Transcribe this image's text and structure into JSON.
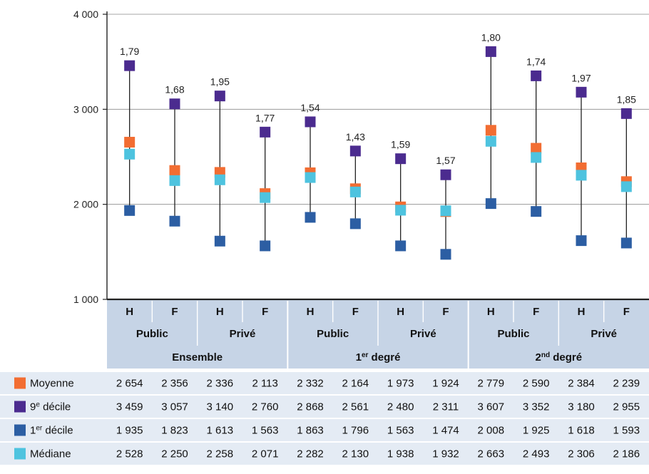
{
  "chart_data": {
    "type": "range",
    "ylim": [
      1000,
      4000
    ],
    "yticks": [
      "1 000",
      "2 000",
      "3 000",
      "4 000"
    ],
    "ytick_values": [
      1000,
      2000,
      3000,
      4000
    ],
    "categories": [
      "H",
      "F",
      "H",
      "F",
      "H",
      "F",
      "H",
      "F",
      "H",
      "F",
      "H",
      "F"
    ],
    "sector_labels": [
      "Public",
      "Privé",
      "Public",
      "Privé",
      "Public",
      "Privé"
    ],
    "group_labels": [
      "Ensemble",
      "1er degré",
      "2nd degré"
    ],
    "ratio_labels": [
      "1,79",
      "1,68",
      "1,95",
      "1,77",
      "1,54",
      "1,43",
      "1,59",
      "1,57",
      "1,80",
      "1,74",
      "1,97",
      "1,85"
    ],
    "series": [
      {
        "name": "Moyenne",
        "color": "#f26d32",
        "values": [
          2654,
          2356,
          2336,
          2113,
          2332,
          2164,
          1973,
          1924,
          2779,
          2590,
          2384,
          2239
        ],
        "labels": [
          "2 654",
          "2 356",
          "2 336",
          "2 113",
          "2 332",
          "2 164",
          "1 973",
          "1 924",
          "2 779",
          "2 590",
          "2 384",
          "2 239"
        ]
      },
      {
        "name": "9e décile",
        "color": "#4b2b8f",
        "values": [
          3459,
          3057,
          3140,
          2760,
          2868,
          2561,
          2480,
          2311,
          3607,
          3352,
          3180,
          2955
        ],
        "labels": [
          "3 459",
          "3 057",
          "3 140",
          "2 760",
          "2 868",
          "2 561",
          "2 480",
          "2 311",
          "3 607",
          "3 352",
          "3 180",
          "2 955"
        ]
      },
      {
        "name": "1er décile",
        "color": "#2c5ea3",
        "values": [
          1935,
          1823,
          1613,
          1563,
          1863,
          1796,
          1563,
          1474,
          2008,
          1925,
          1618,
          1593
        ],
        "labels": [
          "1 935",
          "1 823",
          "1 613",
          "1 563",
          "1 863",
          "1 796",
          "1 563",
          "1 474",
          "2 008",
          "1 925",
          "1 618",
          "1 593"
        ]
      },
      {
        "name": "Médiane",
        "color": "#4ec3df",
        "values": [
          2528,
          2250,
          2258,
          2071,
          2282,
          2130,
          1938,
          1932,
          2663,
          2493,
          2306,
          2186
        ],
        "labels": [
          "2 528",
          "2 250",
          "2 258",
          "2 071",
          "2 282",
          "2 130",
          "1 938",
          "1 932",
          "2 663",
          "2 493",
          "2 306",
          "2 186"
        ]
      }
    ],
    "table_row_labels": [
      {
        "base": "Moyenne",
        "sup": "",
        "rest": ""
      },
      {
        "base": "9",
        "sup": "e",
        "rest": " décile"
      },
      {
        "base": "1",
        "sup": "er",
        "rest": " décile"
      },
      {
        "base": "Médiane",
        "sup": "",
        "rest": ""
      }
    ],
    "group_label_parts": [
      {
        "base": "Ensemble",
        "sup": "",
        "rest": ""
      },
      {
        "base": "1",
        "sup": "er",
        "rest": " degré"
      },
      {
        "base": "2",
        "sup": "nd",
        "rest": " degré"
      }
    ],
    "colors": {
      "header_bg": "#c6d4e6",
      "row_bg": "#e4ebf4",
      "grid": "#8a8a8a",
      "line": "#222222"
    },
    "grid": true
  }
}
